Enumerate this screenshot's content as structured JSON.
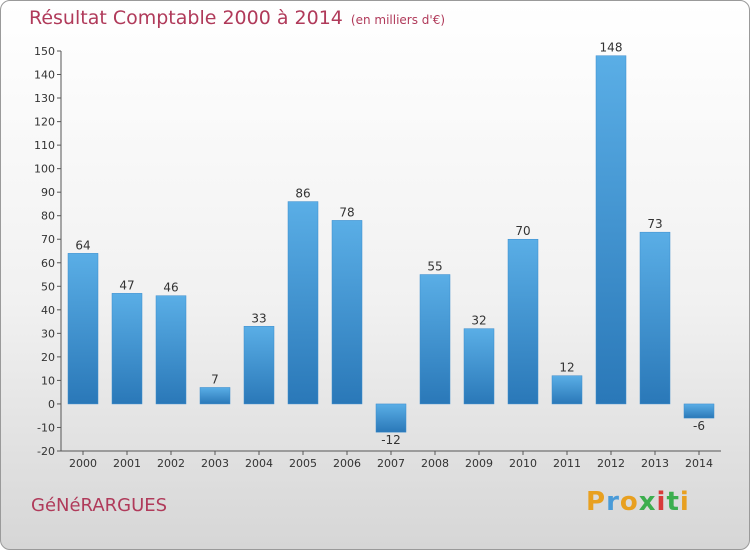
{
  "title": "Résultat Comptable 2000 à 2014",
  "subtitle": "(en milliers d'€)",
  "place": "GéNéRARGUES",
  "brand": {
    "letters": [
      "P",
      "r",
      "o",
      "x",
      "i",
      "t",
      "i"
    ],
    "colors": [
      "#e8a020",
      "#4a9bd8",
      "#e8a020",
      "#3cae4e",
      "#d83a3a",
      "#3cae4e",
      "#e8a020"
    ]
  },
  "colors": {
    "bar_top": "#5aaee6",
    "bar_bottom": "#2a78b8",
    "title": "#b03a5a"
  },
  "chart_data": {
    "type": "bar",
    "title": "Résultat Comptable 2000 à 2014",
    "ylabel": "en milliers d'€",
    "xlabel": "",
    "categories": [
      "2000",
      "2001",
      "2002",
      "2003",
      "2004",
      "2005",
      "2006",
      "2007",
      "2008",
      "2009",
      "2010",
      "2011",
      "2012",
      "2013",
      "2014"
    ],
    "values": [
      64,
      47,
      46,
      7,
      33,
      86,
      78,
      -12,
      55,
      32,
      70,
      12,
      148,
      73,
      -6
    ],
    "ylim": [
      -20,
      150
    ],
    "yticks": [
      -20,
      -10,
      0,
      10,
      20,
      30,
      40,
      50,
      60,
      70,
      80,
      90,
      100,
      110,
      120,
      130,
      140,
      150
    ],
    "grid": false
  }
}
